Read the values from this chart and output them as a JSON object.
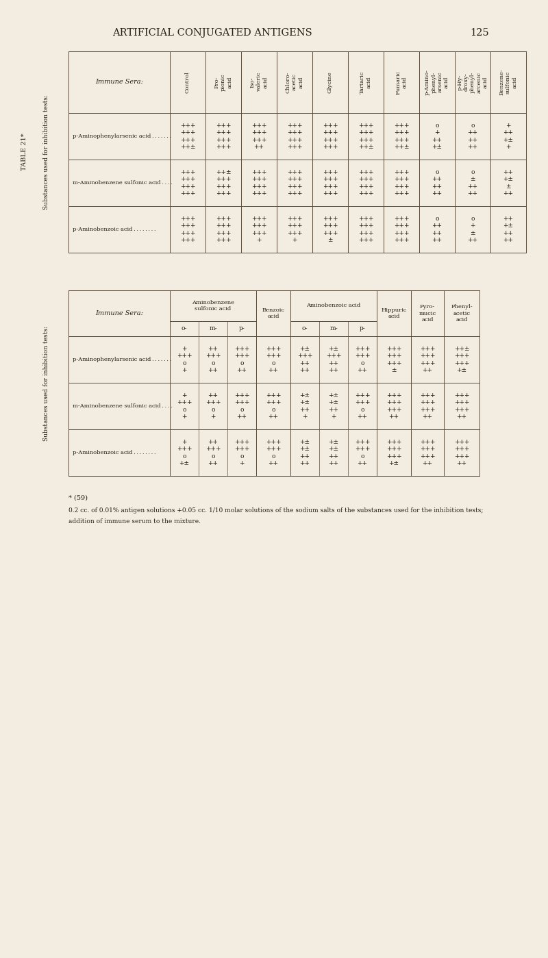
{
  "page_title": "ARTIFICIAL CONJUGATED ANTIGENS",
  "page_number": "125",
  "table_label": "TABLE 21*",
  "background_color": "#F2EDE0",
  "text_color": "#2A2018",
  "line_color": "#5A4A3A",
  "table1_col_headers": [
    "Control",
    "Pro-\npionic\nacid",
    "Iso-\nvaleric\nacid",
    "Chloro-\nacetic\nacid",
    "Glycine",
    "Tartaric\nacid",
    "Fumaric\nacid",
    "p-Amino-\nphenyl-\narsenic\nacid",
    "p-Hy-\ndroxy-\nphenyl-\narcenic\nacid",
    "Benzene-\nsulfonic\nacid"
  ],
  "table1_row_labels": [
    "p-Aminophenylarsenic acid . . . . . . .",
    "m-Aminobenzene sulfonic acid . . . .",
    "p-Aminobenzoic acid . . . . . . . ."
  ],
  "table1_data": [
    [
      "+++\n+++\n+++\n++±",
      "+++\n+++\n+++\n+++",
      "+++\n+++\n+++\n++",
      "+++\n+++\n+++\n+++",
      "+++\n+++\n+++\n+++",
      "+++\n+++\n+++\n++±",
      "+++\n+++\n+++\n++±",
      "o\n+\n++\n+±",
      "o\n++\n++\n++",
      "+\n++\n+±\n+"
    ],
    [
      "+++\n+++\n+++\n+++",
      "++±\n+++\n+++\n+++",
      "+++\n+++\n+++\n+++",
      "+++\n+++\n+++\n+++",
      "+++\n+++\n+++\n+++",
      "+++\n+++\n+++\n+++",
      "+++\n+++\n+++\n+++",
      "o\n++\n++\n++",
      "o\n±\n++\n++",
      "++\n+±\n±\n++"
    ],
    [
      "+++\n+++\n+++\n+++",
      "+++\n+++\n+++\n+++",
      "+++\n+++\n+++\n+",
      "+++\n+++\n+++\n+",
      "+++\n+++\n+++\n±",
      "+++\n+++\n+++\n+++",
      "+++\n+++\n+++\n+++",
      "o\n++\n++\n++",
      "o\n+\n±\n++",
      "++\n+±\n++\n++"
    ]
  ],
  "table2_col_headers_main": [
    "Aminobenzene\nsulfonic acid",
    "Benzoic\nacid",
    "Aminobenzoic acid",
    "Hippuric\nacid",
    "Pyro-\nmucic\nacid",
    "Phenyl-\nacetic\nacid"
  ],
  "table2_col_headers_sub": [
    "o-",
    "m-",
    "p-",
    "",
    "o-",
    "m-",
    "p-",
    "",
    "",
    ""
  ],
  "table2_row_labels": [
    "p-Aminophenylarsenic acid . . . . . . .",
    "m-Aminobenzene sulfonic acid . . . .",
    "p-Aminobenzoic acid . . . . . . . ."
  ],
  "table2_data": [
    [
      "+\n+++\no\n+",
      "++\n+++\no\n++",
      "+++\n+++\no\n++",
      "+++\n+++\no\n++",
      "+±\n+++\n++\n++",
      "+±\n+++\n++\n++",
      "+++\n+++\no\n++",
      "+++\n+++\n+++\n±",
      "+++\n+++\n+++\n++",
      "++±\n+++\n+++\n+±"
    ],
    [
      "+\n+++\no\n+",
      "++\n+++\no\n+",
      "+++\n+++\no\n++",
      "+++\n+++\no\n++",
      "+±\n+±\n++\n+",
      "+±\n+±\n++\n+",
      "+++\n+++\no\n++",
      "+++\n+++\n+++\n++",
      "+++\n+++\n+++\n++",
      "+++\n+++\n+++\n++"
    ],
    [
      "+\n+++\no\n+±",
      "++\n+++\no\n++",
      "+++\n+++\no\n+",
      "+++\n+++\no\n++",
      "+±\n+±\n++\n++",
      "+±\n+±\n++\n++",
      "+++\n+++\no\n++",
      "+++\n+++\n+++\n+±",
      "+++\n+++\n+++\n++",
      "+++\n+++\n+++\n++"
    ]
  ],
  "footnote_line1": "* (59)",
  "footnote_line2": "0.2 cc. of 0.01% antigen solutions +0.05 cc. 1/10 molar solutions of the sodium salts of the substances used for the inhibition tests;",
  "footnote_line3": "addition of immune serum to the mixture."
}
